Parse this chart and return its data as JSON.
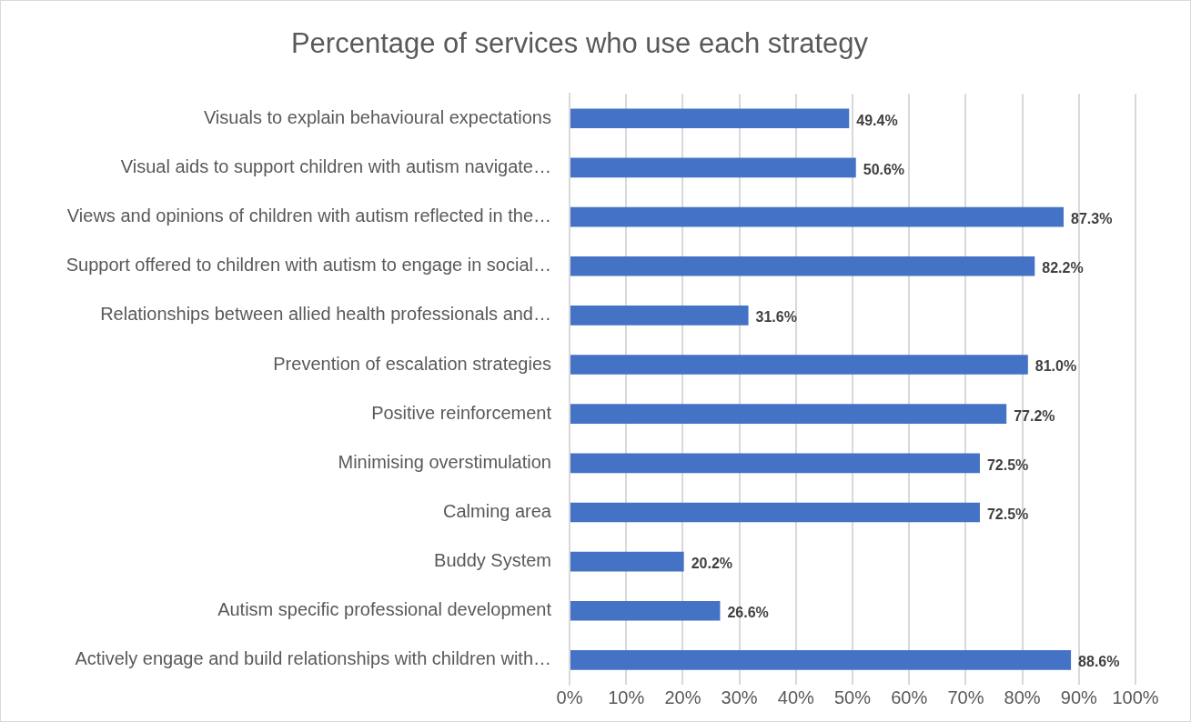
{
  "chart_data": {
    "type": "bar",
    "orientation": "horizontal",
    "title": "Percentage of services who use each strategy",
    "categories": [
      "Visuals to explain behavioural expectations",
      "Visual aids to support children with autism navigate…",
      "Views and opinions of children with autism reflected in the…",
      "Support offered to children with autism to engage in social…",
      "Relationships between allied health professionals and…",
      "Prevention of escalation strategies",
      "Positive reinforcement",
      "Minimising overstimulation",
      "Calming area",
      "Buddy System",
      "Autism specific professional development",
      "Actively engage and build relationships with children with…"
    ],
    "values": [
      49.4,
      50.6,
      87.3,
      82.2,
      31.6,
      81.0,
      77.2,
      72.5,
      72.5,
      20.2,
      26.6,
      88.6
    ],
    "value_labels": [
      "49.4%",
      "50.6%",
      "87.3%",
      "82.2%",
      "31.6%",
      "81.0%",
      "77.2%",
      "72.5%",
      "72.5%",
      "20.2%",
      "26.6%",
      "88.6%"
    ],
    "color": "#4472c4",
    "xlim": [
      0,
      100
    ],
    "xticks": [
      {
        "value": 0,
        "label": "0%"
      },
      {
        "value": 10,
        "label": "10%"
      },
      {
        "value": 20,
        "label": "20%"
      },
      {
        "value": 30,
        "label": "30%"
      },
      {
        "value": 40,
        "label": "40%"
      },
      {
        "value": 50,
        "label": "50%"
      },
      {
        "value": 60,
        "label": "60%"
      },
      {
        "value": 70,
        "label": "70%"
      },
      {
        "value": 80,
        "label": "80%"
      },
      {
        "value": 90,
        "label": "90%"
      },
      {
        "value": 100,
        "label": "100%"
      }
    ],
    "grid": "x",
    "legend": false
  }
}
